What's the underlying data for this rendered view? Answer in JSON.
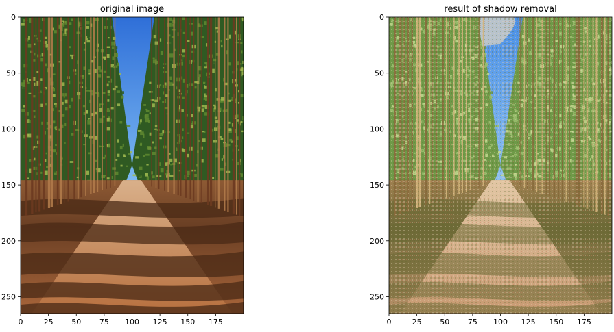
{
  "panels": [
    {
      "title": "original image",
      "x_ticks": [
        "0",
        "25",
        "50",
        "75",
        "100",
        "125",
        "150",
        "175"
      ],
      "y_ticks": [
        "0",
        "50",
        "100",
        "150",
        "200",
        "250"
      ],
      "image_extent": {
        "x": [
          0,
          200
        ],
        "y": [
          0,
          265
        ]
      }
    },
    {
      "title": "result of shadow removal",
      "x_ticks": [
        "0",
        "25",
        "50",
        "75",
        "100",
        "125",
        "150",
        "175"
      ],
      "y_ticks": [
        "0",
        "50",
        "100",
        "150",
        "200",
        "250"
      ],
      "image_extent": {
        "x": [
          0,
          200
        ],
        "y": [
          0,
          265
        ]
      }
    }
  ],
  "colors": {
    "sky_original": "#3f86e6",
    "sky_result": "#5aa0f0",
    "sky_result_patch": "#b8c3cc",
    "path_original": "#b06a3c",
    "path_result": "#c0966c"
  }
}
